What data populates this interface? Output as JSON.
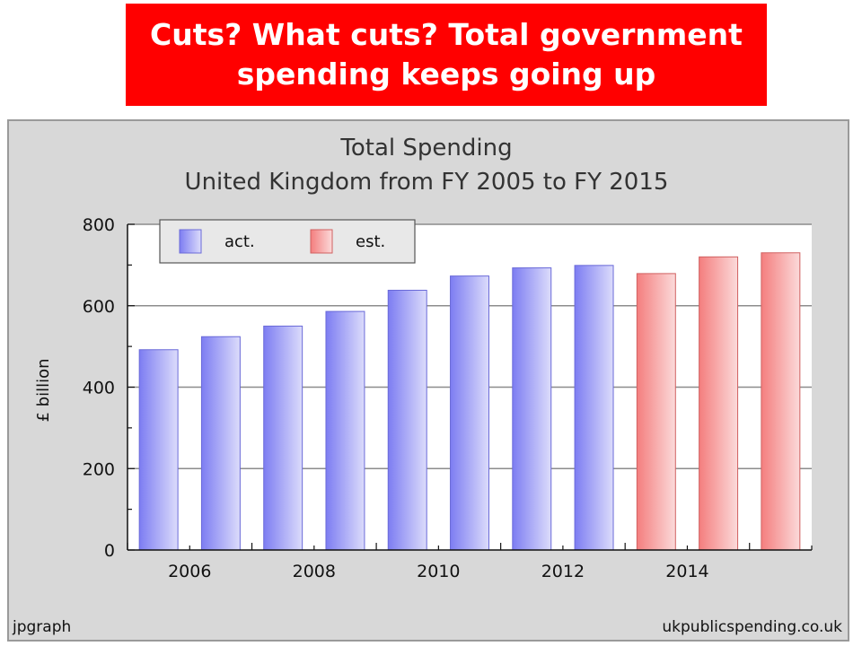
{
  "header": {
    "line1": "Cuts? What cuts? Total government",
    "line2": "spending keeps going up",
    "background": "#ff0000"
  },
  "footer": {
    "left": "jpgraph",
    "right": "ukpublicspending.co.uk"
  },
  "chart_data": {
    "type": "bar",
    "title": "Total Spending",
    "subtitle": "United Kingdom from FY 2005 to FY 2015",
    "ylabel": "£ billion",
    "xlabel": "",
    "ylim": [
      0,
      800
    ],
    "yticks": [
      "0",
      "200",
      "400",
      "600",
      "800"
    ],
    "xtick_labels": [
      "2006",
      "2008",
      "2010",
      "2012",
      "2014"
    ],
    "grid": true,
    "legend_position": "top-left",
    "x": [
      2005,
      2006,
      2007,
      2008,
      2009,
      2010,
      2011,
      2012,
      2013,
      2014,
      2015
    ],
    "values": [
      492,
      524,
      550,
      586,
      638,
      673,
      693,
      699,
      679,
      720,
      730
    ],
    "status": [
      "act.",
      "act.",
      "act.",
      "act.",
      "act.",
      "act.",
      "act.",
      "act.",
      "est.",
      "est.",
      "est."
    ],
    "series": [
      {
        "name": "act.",
        "color": "#8f8ff5"
      },
      {
        "name": "est.",
        "color": "#f59090"
      }
    ]
  }
}
